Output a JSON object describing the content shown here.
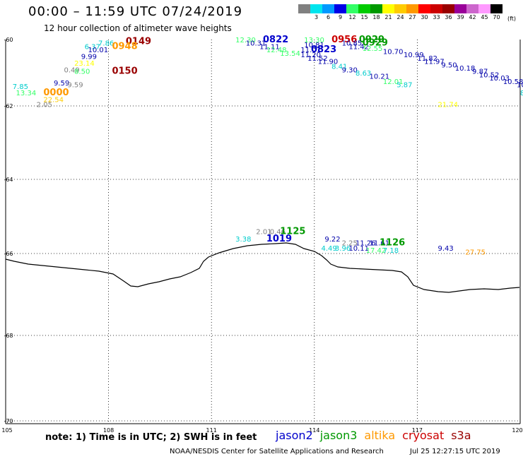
{
  "header": {
    "title": "00:00 – 11:59 UTC 07/24/2019",
    "subtitle": "12 hour collection of altimeter wave heights"
  },
  "colorbar": {
    "colors": [
      "#808080",
      "#00e5ee",
      "#0099ff",
      "#0000e6",
      "#33ff66",
      "#00cc00",
      "#009900",
      "#ffff00",
      "#ffcc00",
      "#ff9900",
      "#ff0000",
      "#cc0000",
      "#990000",
      "#990099",
      "#cc66cc",
      "#ff99ff",
      "#000000"
    ],
    "labels": [
      "",
      "3",
      "6",
      "9",
      "12",
      "15",
      "18",
      "21",
      "24",
      "27",
      "30",
      "33",
      "36",
      "39",
      "42",
      "45",
      "70"
    ],
    "unit": "(ft)"
  },
  "axes": {
    "lat_labels": [
      "-60",
      "-62",
      "-64",
      "-66",
      "-68",
      "-70"
    ],
    "lon_labels": [
      "105",
      "108",
      "111",
      "114",
      "117",
      "120"
    ],
    "lat_range": [
      -70,
      -60
    ],
    "lon_range": [
      105,
      120
    ]
  },
  "satellites": [
    {
      "name": "jason2",
      "color": "#0000cc"
    },
    {
      "name": "jason3",
      "color": "#009900"
    },
    {
      "name": "altika",
      "color": "#ff9900"
    },
    {
      "name": "cryosat",
      "color": "#cc0000"
    },
    {
      "name": "s3a",
      "color": "#990000"
    }
  ],
  "note": "note: 1) Time is in UTC; 2) SWH is in feet",
  "credit": "NOAA/NESDIS Center for Satellite Applications and Research",
  "timestamp": "Jul 25 12:27:15 UTC 2019",
  "observations": [
    {
      "text": "7.86",
      "lon": 107.7,
      "lat": -60.1,
      "color": "#00cccc"
    },
    {
      "text": "6.37",
      "lon": 107.3,
      "lat": -60.2,
      "color": "#00cccc"
    },
    {
      "text": "0149",
      "lon": 108.5,
      "lat": -60.05,
      "color": "#990000",
      "pass": true
    },
    {
      "text": "0948",
      "lon": 108.1,
      "lat": -60.2,
      "color": "#ff9900",
      "pass": true
    },
    {
      "text": "10.01",
      "lon": 107.4,
      "lat": -60.3,
      "color": "#0000aa"
    },
    {
      "text": "9.99",
      "lon": 107.2,
      "lat": -60.5,
      "color": "#0000aa"
    },
    {
      "text": "23.14",
      "lon": 107.0,
      "lat": -60.7,
      "color": "#ffff00"
    },
    {
      "text": "0.49",
      "lon": 106.7,
      "lat": -60.9,
      "color": "#808080"
    },
    {
      "text": "8.50",
      "lon": 107.0,
      "lat": -60.95,
      "color": "#33ff66"
    },
    {
      "text": "0150",
      "lon": 108.1,
      "lat": -60.95,
      "color": "#990000",
      "pass": true
    },
    {
      "text": "9.59",
      "lon": 106.4,
      "lat": -61.3,
      "color": "#0000aa"
    },
    {
      "text": "9.59",
      "lon": 106.8,
      "lat": -61.35,
      "color": "#808080"
    },
    {
      "text": "7.85",
      "lon": 105.2,
      "lat": -61.4,
      "color": "#00cccc"
    },
    {
      "text": "13.34",
      "lon": 105.3,
      "lat": -61.6,
      "color": "#33ff66"
    },
    {
      "text": "0000",
      "lon": 106.1,
      "lat": -61.6,
      "color": "#ff9900",
      "pass": true
    },
    {
      "text": "22.54",
      "lon": 106.1,
      "lat": -61.8,
      "color": "#ffcc00"
    },
    {
      "text": "2.05",
      "lon": 105.9,
      "lat": -61.95,
      "color": "#808080"
    },
    {
      "text": "12.30",
      "lon": 111.7,
      "lat": -60.0,
      "color": "#33ff66"
    },
    {
      "text": "0822",
      "lon": 112.5,
      "lat": -60.0,
      "color": "#0000cc",
      "pass": true
    },
    {
      "text": "10.31",
      "lon": 112.0,
      "lat": -60.1,
      "color": "#0000aa"
    },
    {
      "text": "11.11",
      "lon": 112.4,
      "lat": -60.2,
      "color": "#0000aa"
    },
    {
      "text": "12.48",
      "lon": 112.6,
      "lat": -60.3,
      "color": "#33ff66"
    },
    {
      "text": "13.54",
      "lon": 113.0,
      "lat": -60.4,
      "color": "#33ff66"
    },
    {
      "text": "13.30",
      "lon": 113.7,
      "lat": -60.0,
      "color": "#33ff66"
    },
    {
      "text": "0956",
      "lon": 114.5,
      "lat": -60.0,
      "color": "#cc0000",
      "pass": true
    },
    {
      "text": "0929",
      "lon": 115.3,
      "lat": -60.0,
      "color": "#009900",
      "pass": true
    },
    {
      "text": "10.81",
      "lon": 113.7,
      "lat": -60.15,
      "color": "#0000aa"
    },
    {
      "text": "10.85",
      "lon": 114.8,
      "lat": -60.1,
      "color": "#0000aa"
    },
    {
      "text": "11.42",
      "lon": 115.0,
      "lat": -60.2,
      "color": "#0000aa"
    },
    {
      "text": "0929",
      "lon": 115.4,
      "lat": -60.1,
      "color": "#009900",
      "pass": true
    },
    {
      "text": "12.55",
      "lon": 115.4,
      "lat": -60.25,
      "color": "#33ff66"
    },
    {
      "text": "11.01",
      "lon": 113.6,
      "lat": -60.3,
      "color": "#0000aa"
    },
    {
      "text": "0823",
      "lon": 113.9,
      "lat": -60.3,
      "color": "#0000cc",
      "pass": true
    },
    {
      "text": "11.20",
      "lon": 113.6,
      "lat": -60.45,
      "color": "#0000aa"
    },
    {
      "text": "11.52",
      "lon": 113.8,
      "lat": -60.55,
      "color": "#0000aa"
    },
    {
      "text": "11.90",
      "lon": 114.1,
      "lat": -60.65,
      "color": "#0000aa"
    },
    {
      "text": "10.70",
      "lon": 116.0,
      "lat": -60.35,
      "color": "#0000aa"
    },
    {
      "text": "10.99",
      "lon": 116.6,
      "lat": -60.45,
      "color": "#0000aa"
    },
    {
      "text": "11.82",
      "lon": 117.0,
      "lat": -60.55,
      "color": "#0000aa"
    },
    {
      "text": "11.97",
      "lon": 117.2,
      "lat": -60.65,
      "color": "#0000aa"
    },
    {
      "text": "9.50",
      "lon": 117.7,
      "lat": -60.75,
      "color": "#0000aa"
    },
    {
      "text": "10.18",
      "lon": 118.1,
      "lat": -60.85,
      "color": "#0000aa"
    },
    {
      "text": "9.87",
      "lon": 118.6,
      "lat": -60.95,
      "color": "#0000aa"
    },
    {
      "text": "10.52",
      "lon": 118.8,
      "lat": -61.05,
      "color": "#0000aa"
    },
    {
      "text": "10.03",
      "lon": 119.1,
      "lat": -61.15,
      "color": "#0000aa"
    },
    {
      "text": "10.58",
      "lon": 119.5,
      "lat": -61.25,
      "color": "#0000aa"
    },
    {
      "text": "10.23",
      "lon": 119.9,
      "lat": -61.35,
      "color": "#0000aa"
    },
    {
      "text": "8.41",
      "lon": 114.5,
      "lat": -60.8,
      "color": "#00cccc"
    },
    {
      "text": "9.30",
      "lon": 114.8,
      "lat": -60.9,
      "color": "#0000aa"
    },
    {
      "text": "8.63",
      "lon": 115.2,
      "lat": -61.0,
      "color": "#00cccc"
    },
    {
      "text": "10.21",
      "lon": 115.6,
      "lat": -61.1,
      "color": "#0000aa"
    },
    {
      "text": "12.01",
      "lon": 116.0,
      "lat": -61.25,
      "color": "#33ff66"
    },
    {
      "text": "5.87",
      "lon": 116.4,
      "lat": -61.35,
      "color": "#00cccc"
    },
    {
      "text": "21.74",
      "lon": 117.6,
      "lat": -61.95,
      "color": "#ffff00"
    },
    {
      "text": "8",
      "lon": 120.0,
      "lat": -61.6,
      "color": "#00cccc"
    },
    {
      "text": "3.38",
      "lon": 111.7,
      "lat": -65.6,
      "color": "#00cccc"
    },
    {
      "text": "2.01",
      "lon": 112.3,
      "lat": -65.4,
      "color": "#808080"
    },
    {
      "text": "0.46",
      "lon": 112.7,
      "lat": -65.4,
      "color": "#808080"
    },
    {
      "text": "1125",
      "lon": 113.0,
      "lat": -65.4,
      "color": "#009900",
      "pass": true
    },
    {
      "text": "1019",
      "lon": 112.6,
      "lat": -65.6,
      "color": "#0000cc",
      "pass": true
    },
    {
      "text": "9.22",
      "lon": 114.3,
      "lat": -65.6,
      "color": "#0000aa"
    },
    {
      "text": "2.25",
      "lon": 114.8,
      "lat": -65.7,
      "color": "#808080"
    },
    {
      "text": "11.26",
      "lon": 115.2,
      "lat": -65.7,
      "color": "#0000aa"
    },
    {
      "text": "11.61",
      "lon": 115.6,
      "lat": -65.7,
      "color": "#0000aa"
    },
    {
      "text": "1126",
      "lon": 115.9,
      "lat": -65.7,
      "color": "#009900",
      "pass": true
    },
    {
      "text": "4.49",
      "lon": 114.2,
      "lat": -65.85,
      "color": "#00cccc"
    },
    {
      "text": "3.96",
      "lon": 114.6,
      "lat": -65.85,
      "color": "#00cccc"
    },
    {
      "text": "10.11",
      "lon": 115.0,
      "lat": -65.85,
      "color": "#0000aa"
    },
    {
      "text": "17.42",
      "lon": 115.5,
      "lat": -65.9,
      "color": "#33ff66"
    },
    {
      "text": "7.18",
      "lon": 116.0,
      "lat": -65.9,
      "color": "#00cccc"
    },
    {
      "text": "9.43",
      "lon": 117.6,
      "lat": -65.85,
      "color": "#0000aa"
    },
    {
      "text": "27.75",
      "lon": 118.4,
      "lat": -65.95,
      "color": "#ff9900"
    }
  ]
}
